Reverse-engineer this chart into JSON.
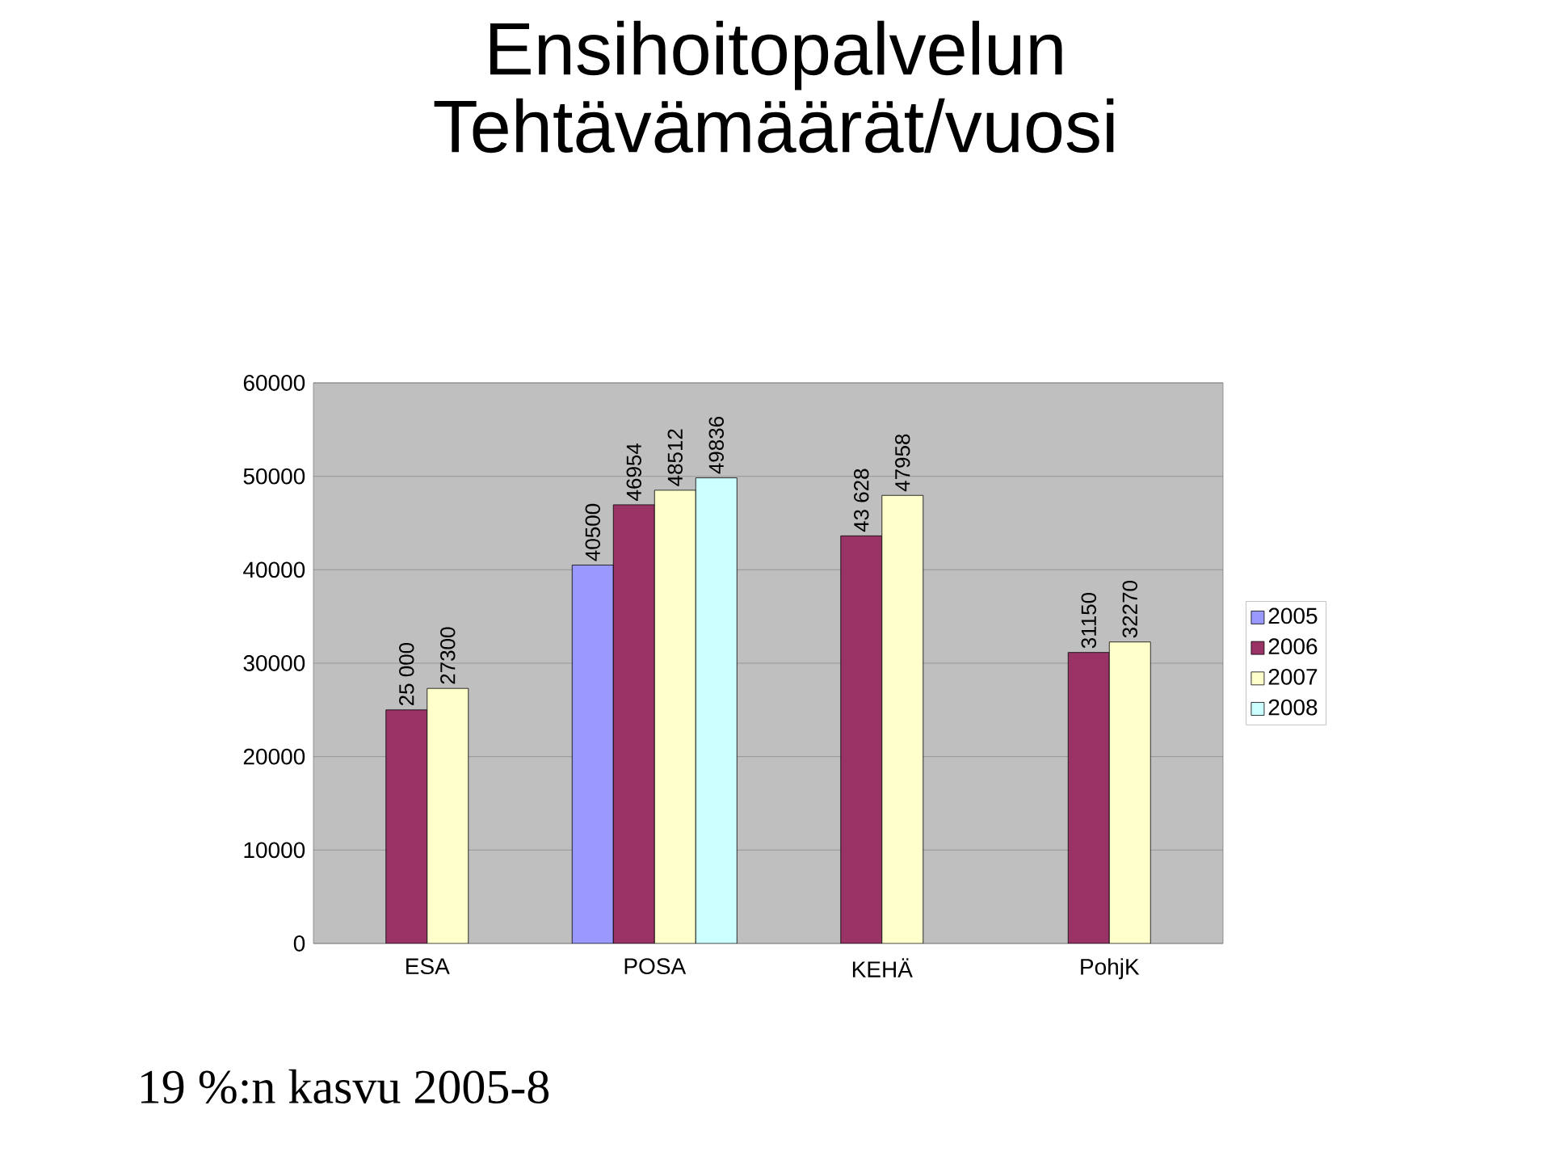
{
  "chart_data": {
    "type": "bar",
    "title": "Ensihoitopalvelun Tehtävämäärät/vuosi",
    "categories": [
      "ESA",
      "POSA",
      "KEHÄ",
      "PohjK"
    ],
    "series": [
      {
        "name": "2005",
        "color": "#9999ff",
        "values": [
          null,
          40500,
          null,
          null
        ],
        "value_labels": [
          null,
          "40500",
          null,
          null
        ]
      },
      {
        "name": "2006",
        "color": "#993366",
        "values": [
          25000,
          46954,
          43628,
          31150
        ],
        "value_labels": [
          "25 000",
          "46954",
          "43 628",
          "31150"
        ]
      },
      {
        "name": "2007",
        "color": "#ffffcc",
        "values": [
          27300,
          48512,
          47958,
          32270
        ],
        "value_labels": [
          "27300",
          "48512",
          "47958",
          "32270"
        ]
      },
      {
        "name": "2008",
        "color": "#ccffff",
        "values": [
          null,
          49836,
          null,
          null
        ],
        "value_labels": [
          null,
          "49836",
          null,
          null
        ]
      }
    ],
    "ylim": [
      0,
      60000
    ],
    "yticks": [
      0,
      10000,
      20000,
      30000,
      40000,
      50000,
      60000
    ],
    "grid": "y",
    "legend": "right",
    "annotations": [
      "19 %:n kasvu 2005-8"
    ]
  }
}
